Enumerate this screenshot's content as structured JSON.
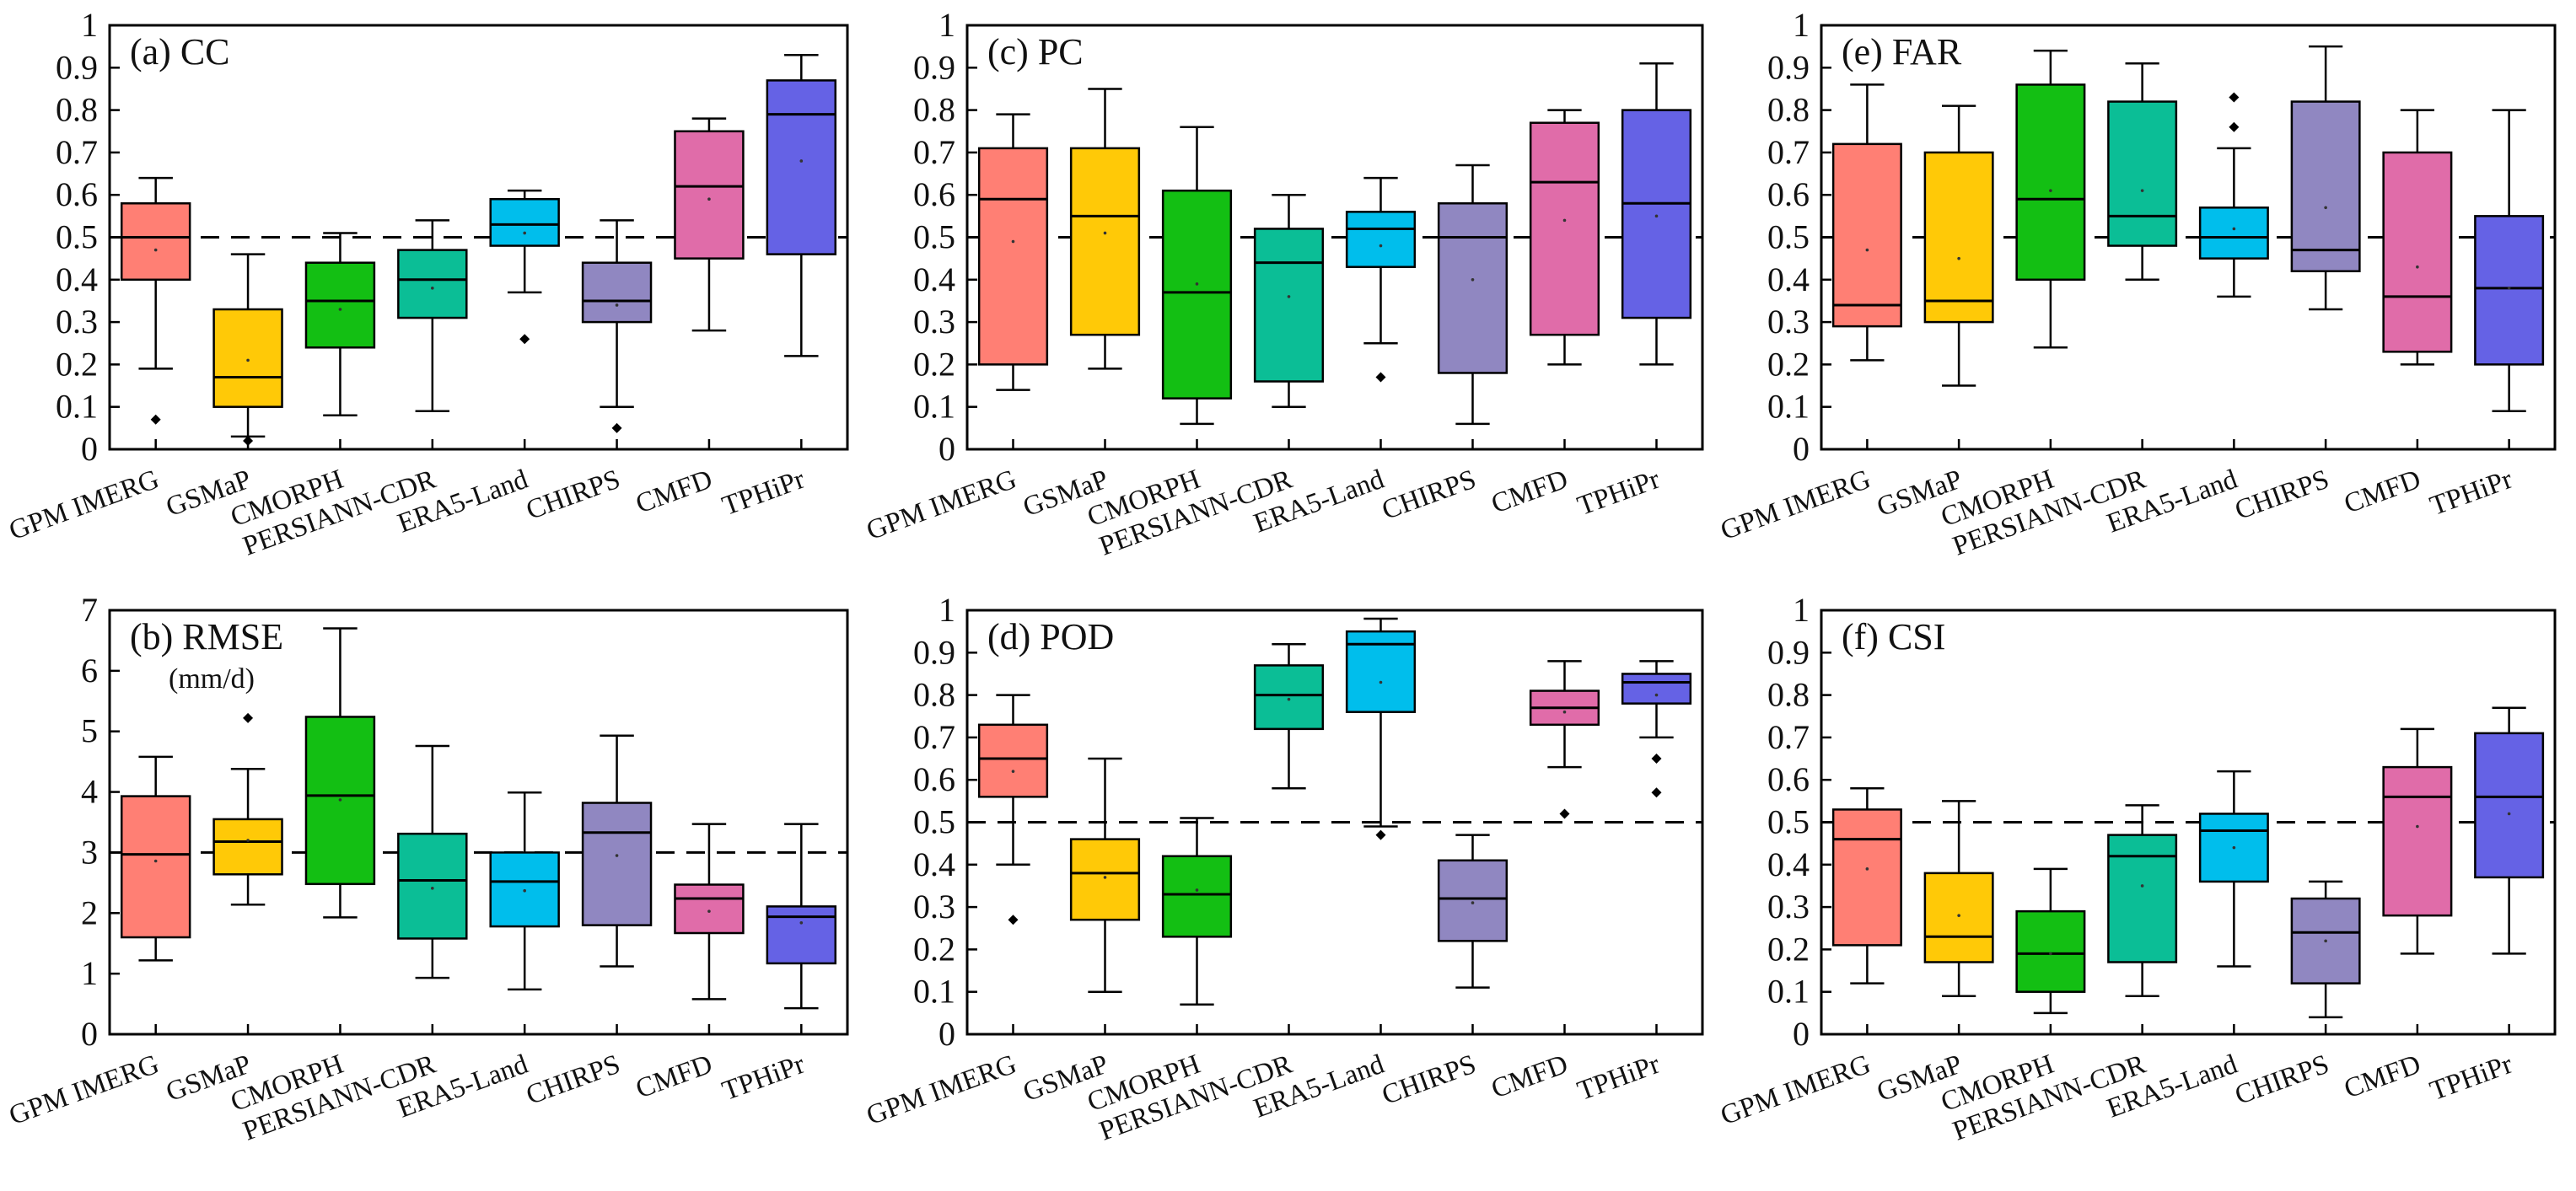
{
  "colors": [
    "#FF7F74",
    "#FFC907",
    "#13BF13",
    "#0BBE96",
    "#00BEEC",
    "#9087C1",
    "#E06CA9",
    "#6562E5"
  ],
  "chart_data": [
    {
      "type": "box",
      "id": "cc",
      "title": "(a) CC",
      "subtitle": "",
      "ylim": [
        0,
        1
      ],
      "yticks": [
        0,
        0.1,
        0.2,
        0.3,
        0.4,
        0.5,
        0.6,
        0.7,
        0.8,
        0.9,
        1
      ],
      "ytick_labels": [
        "0",
        "0.1",
        "0.2",
        "0.3",
        "0.4",
        "0.5",
        "0.6",
        "0.7",
        "0.8",
        "0.9",
        "1"
      ],
      "reference_line": 0.5,
      "categories": [
        "GPM IMERG",
        "GSMaP",
        "CMORPH",
        "PERSIANN-CDR",
        "ERA5-Land",
        "CHIRPS",
        "CMFD",
        "TPHiPr"
      ],
      "boxes": [
        {
          "min": 0.19,
          "q1": 0.4,
          "median": 0.5,
          "q3": 0.58,
          "max": 0.64,
          "mean": 0.47,
          "outliers": [
            0.07
          ]
        },
        {
          "min": 0.03,
          "q1": 0.1,
          "median": 0.17,
          "q3": 0.33,
          "max": 0.46,
          "mean": 0.21,
          "outliers": [
            0.02
          ]
        },
        {
          "min": 0.08,
          "q1": 0.24,
          "median": 0.35,
          "q3": 0.44,
          "max": 0.51,
          "mean": 0.33,
          "outliers": []
        },
        {
          "min": 0.09,
          "q1": 0.31,
          "median": 0.4,
          "q3": 0.47,
          "max": 0.54,
          "mean": 0.38,
          "outliers": []
        },
        {
          "min": 0.37,
          "q1": 0.48,
          "median": 0.53,
          "q3": 0.59,
          "max": 0.61,
          "mean": 0.51,
          "outliers": [
            0.26
          ]
        },
        {
          "min": 0.1,
          "q1": 0.3,
          "median": 0.35,
          "q3": 0.44,
          "max": 0.54,
          "mean": 0.34,
          "outliers": [
            0.05
          ]
        },
        {
          "min": 0.28,
          "q1": 0.45,
          "median": 0.62,
          "q3": 0.75,
          "max": 0.78,
          "mean": 0.59,
          "outliers": []
        },
        {
          "min": 0.22,
          "q1": 0.46,
          "median": 0.79,
          "q3": 0.87,
          "max": 0.93,
          "mean": 0.68,
          "outliers": []
        }
      ]
    },
    {
      "type": "box",
      "id": "pc",
      "title": "(c) PC",
      "subtitle": "",
      "ylim": [
        0,
        1
      ],
      "yticks": [
        0,
        0.1,
        0.2,
        0.3,
        0.4,
        0.5,
        0.6,
        0.7,
        0.8,
        0.9,
        1
      ],
      "ytick_labels": [
        "0",
        "0.1",
        "0.2",
        "0.3",
        "0.4",
        "0.5",
        "0.6",
        "0.7",
        "0.8",
        "0.9",
        "1"
      ],
      "reference_line": 0.5,
      "categories": [
        "GPM IMERG",
        "GSMaP",
        "CMORPH",
        "PERSIANN-CDR",
        "ERA5-Land",
        "CHIRPS",
        "CMFD",
        "TPHiPr"
      ],
      "boxes": [
        {
          "min": 0.14,
          "q1": 0.2,
          "median": 0.59,
          "q3": 0.71,
          "max": 0.79,
          "mean": 0.49,
          "outliers": []
        },
        {
          "min": 0.19,
          "q1": 0.27,
          "median": 0.55,
          "q3": 0.71,
          "max": 0.85,
          "mean": 0.51,
          "outliers": []
        },
        {
          "min": 0.06,
          "q1": 0.12,
          "median": 0.37,
          "q3": 0.61,
          "max": 0.76,
          "mean": 0.39,
          "outliers": []
        },
        {
          "min": 0.1,
          "q1": 0.16,
          "median": 0.44,
          "q3": 0.52,
          "max": 0.6,
          "mean": 0.36,
          "outliers": []
        },
        {
          "min": 0.25,
          "q1": 0.43,
          "median": 0.52,
          "q3": 0.56,
          "max": 0.64,
          "mean": 0.48,
          "outliers": [
            0.17
          ]
        },
        {
          "min": 0.06,
          "q1": 0.18,
          "median": 0.5,
          "q3": 0.58,
          "max": 0.67,
          "mean": 0.4,
          "outliers": []
        },
        {
          "min": 0.2,
          "q1": 0.27,
          "median": 0.63,
          "q3": 0.77,
          "max": 0.8,
          "mean": 0.54,
          "outliers": []
        },
        {
          "min": 0.2,
          "q1": 0.31,
          "median": 0.58,
          "q3": 0.8,
          "max": 0.91,
          "mean": 0.55,
          "outliers": []
        }
      ]
    },
    {
      "type": "box",
      "id": "far",
      "title": "(e) FAR",
      "subtitle": "",
      "ylim": [
        0,
        1
      ],
      "yticks": [
        0,
        0.1,
        0.2,
        0.3,
        0.4,
        0.5,
        0.6,
        0.7,
        0.8,
        0.9,
        1
      ],
      "ytick_labels": [
        "0",
        "0.1",
        "0.2",
        "0.3",
        "0.4",
        "0.5",
        "0.6",
        "0.7",
        "0.8",
        "0.9",
        "1"
      ],
      "reference_line": 0.5,
      "categories": [
        "GPM IMERG",
        "GSMaP",
        "CMORPH",
        "PERSIANN-CDR",
        "ERA5-Land",
        "CHIRPS",
        "CMFD",
        "TPHiPr"
      ],
      "boxes": [
        {
          "min": 0.21,
          "q1": 0.29,
          "median": 0.34,
          "q3": 0.72,
          "max": 0.86,
          "mean": 0.47,
          "outliers": []
        },
        {
          "min": 0.15,
          "q1": 0.3,
          "median": 0.35,
          "q3": 0.7,
          "max": 0.81,
          "mean": 0.45,
          "outliers": []
        },
        {
          "min": 0.24,
          "q1": 0.4,
          "median": 0.59,
          "q3": 0.86,
          "max": 0.94,
          "mean": 0.61,
          "outliers": []
        },
        {
          "min": 0.4,
          "q1": 0.48,
          "median": 0.55,
          "q3": 0.82,
          "max": 0.91,
          "mean": 0.61,
          "outliers": []
        },
        {
          "min": 0.36,
          "q1": 0.45,
          "median": 0.5,
          "q3": 0.57,
          "max": 0.71,
          "mean": 0.52,
          "outliers": [
            0.76,
            0.83
          ]
        },
        {
          "min": 0.33,
          "q1": 0.42,
          "median": 0.47,
          "q3": 0.82,
          "max": 0.95,
          "mean": 0.57,
          "outliers": []
        },
        {
          "min": 0.2,
          "q1": 0.23,
          "median": 0.36,
          "q3": 0.7,
          "max": 0.8,
          "mean": 0.43,
          "outliers": []
        },
        {
          "min": 0.09,
          "q1": 0.2,
          "median": 0.38,
          "q3": 0.55,
          "max": 0.8,
          "mean": 0.38,
          "outliers": []
        }
      ]
    },
    {
      "type": "box",
      "id": "rmse",
      "title": "(b) RMSE",
      "subtitle": "(mm/d)",
      "ylim": [
        0,
        7
      ],
      "yticks": [
        0,
        1,
        2,
        3,
        4,
        5,
        6,
        7
      ],
      "ytick_labels": [
        "0",
        "1",
        "2",
        "3",
        "4",
        "5",
        "6",
        "7"
      ],
      "reference_line": 3,
      "categories": [
        "GPM IMERG",
        "GSMaP",
        "CMORPH",
        "PERSIANN-CDR",
        "ERA5-Land",
        "CHIRPS",
        "CMFD",
        "TPHiPr"
      ],
      "boxes": [
        {
          "min": 1.22,
          "q1": 1.6,
          "median": 2.97,
          "q3": 3.93,
          "max": 4.58,
          "mean": 2.86,
          "outliers": []
        },
        {
          "min": 2.14,
          "q1": 2.64,
          "median": 3.18,
          "q3": 3.55,
          "max": 4.38,
          "mean": 3.2,
          "outliers": [
            5.22
          ]
        },
        {
          "min": 1.93,
          "q1": 2.48,
          "median": 3.94,
          "q3": 5.24,
          "max": 6.7,
          "mean": 3.87,
          "outliers": []
        },
        {
          "min": 0.93,
          "q1": 1.58,
          "median": 2.54,
          "q3": 3.31,
          "max": 4.76,
          "mean": 2.41,
          "outliers": []
        },
        {
          "min": 0.74,
          "q1": 1.78,
          "median": 2.52,
          "q3": 3.0,
          "max": 3.99,
          "mean": 2.37,
          "outliers": []
        },
        {
          "min": 1.12,
          "q1": 1.8,
          "median": 3.33,
          "q3": 3.82,
          "max": 4.93,
          "mean": 2.95,
          "outliers": []
        },
        {
          "min": 0.58,
          "q1": 1.67,
          "median": 2.24,
          "q3": 2.47,
          "max": 3.47,
          "mean": 2.03,
          "outliers": []
        },
        {
          "min": 0.43,
          "q1": 1.17,
          "median": 1.94,
          "q3": 2.11,
          "max": 3.47,
          "mean": 1.84,
          "outliers": []
        }
      ]
    },
    {
      "type": "box",
      "id": "pod",
      "title": "(d) POD",
      "subtitle": "",
      "ylim": [
        0,
        1
      ],
      "yticks": [
        0,
        0.1,
        0.2,
        0.3,
        0.4,
        0.5,
        0.6,
        0.7,
        0.8,
        0.9,
        1
      ],
      "ytick_labels": [
        "0",
        "0.1",
        "0.2",
        "0.3",
        "0.4",
        "0.5",
        "0.6",
        "0.7",
        "0.8",
        "0.9",
        "1"
      ],
      "reference_line": 0.5,
      "categories": [
        "GPM IMERG",
        "GSMaP",
        "CMORPH",
        "PERSIANN-CDR",
        "ERA5-Land",
        "CHIRPS",
        "CMFD",
        "TPHiPr"
      ],
      "boxes": [
        {
          "min": 0.4,
          "q1": 0.56,
          "median": 0.65,
          "q3": 0.73,
          "max": 0.8,
          "mean": 0.62,
          "outliers": [
            0.27
          ]
        },
        {
          "min": 0.1,
          "q1": 0.27,
          "median": 0.38,
          "q3": 0.46,
          "max": 0.65,
          "mean": 0.37,
          "outliers": []
        },
        {
          "min": 0.07,
          "q1": 0.23,
          "median": 0.33,
          "q3": 0.42,
          "max": 0.51,
          "mean": 0.34,
          "outliers": []
        },
        {
          "min": 0.58,
          "q1": 0.72,
          "median": 0.8,
          "q3": 0.87,
          "max": 0.92,
          "mean": 0.79,
          "outliers": []
        },
        {
          "min": 0.49,
          "q1": 0.76,
          "median": 0.92,
          "q3": 0.95,
          "max": 0.98,
          "mean": 0.83,
          "outliers": [
            0.47
          ]
        },
        {
          "min": 0.11,
          "q1": 0.22,
          "median": 0.32,
          "q3": 0.41,
          "max": 0.47,
          "mean": 0.31,
          "outliers": []
        },
        {
          "min": 0.63,
          "q1": 0.73,
          "median": 0.77,
          "q3": 0.81,
          "max": 0.88,
          "mean": 0.76,
          "outliers": [
            0.52
          ]
        },
        {
          "min": 0.7,
          "q1": 0.78,
          "median": 0.83,
          "q3": 0.85,
          "max": 0.88,
          "mean": 0.8,
          "outliers": [
            0.65,
            0.57
          ]
        }
      ]
    },
    {
      "type": "box",
      "id": "csi",
      "title": "(f) CSI",
      "subtitle": "",
      "ylim": [
        0,
        1
      ],
      "yticks": [
        0,
        0.1,
        0.2,
        0.3,
        0.4,
        0.5,
        0.6,
        0.7,
        0.8,
        0.9,
        1
      ],
      "ytick_labels": [
        "0",
        "0.1",
        "0.2",
        "0.3",
        "0.4",
        "0.5",
        "0.6",
        "0.7",
        "0.8",
        "0.9",
        "1"
      ],
      "reference_line": 0.5,
      "categories": [
        "GPM IMERG",
        "GSMaP",
        "CMORPH",
        "PERSIANN-CDR",
        "ERA5-Land",
        "CHIRPS",
        "CMFD",
        "TPHiPr"
      ],
      "boxes": [
        {
          "min": 0.12,
          "q1": 0.21,
          "median": 0.46,
          "q3": 0.53,
          "max": 0.58,
          "mean": 0.39,
          "outliers": []
        },
        {
          "min": 0.09,
          "q1": 0.17,
          "median": 0.23,
          "q3": 0.38,
          "max": 0.55,
          "mean": 0.28,
          "outliers": []
        },
        {
          "min": 0.05,
          "q1": 0.1,
          "median": 0.19,
          "q3": 0.29,
          "max": 0.39,
          "mean": 0.19,
          "outliers": []
        },
        {
          "min": 0.09,
          "q1": 0.17,
          "median": 0.42,
          "q3": 0.47,
          "max": 0.54,
          "mean": 0.35,
          "outliers": []
        },
        {
          "min": 0.16,
          "q1": 0.36,
          "median": 0.48,
          "q3": 0.52,
          "max": 0.62,
          "mean": 0.44,
          "outliers": []
        },
        {
          "min": 0.04,
          "q1": 0.12,
          "median": 0.24,
          "q3": 0.32,
          "max": 0.36,
          "mean": 0.22,
          "outliers": []
        },
        {
          "min": 0.19,
          "q1": 0.28,
          "median": 0.56,
          "q3": 0.63,
          "max": 0.72,
          "mean": 0.49,
          "outliers": []
        },
        {
          "min": 0.19,
          "q1": 0.37,
          "median": 0.56,
          "q3": 0.71,
          "max": 0.77,
          "mean": 0.52,
          "outliers": []
        }
      ]
    }
  ]
}
